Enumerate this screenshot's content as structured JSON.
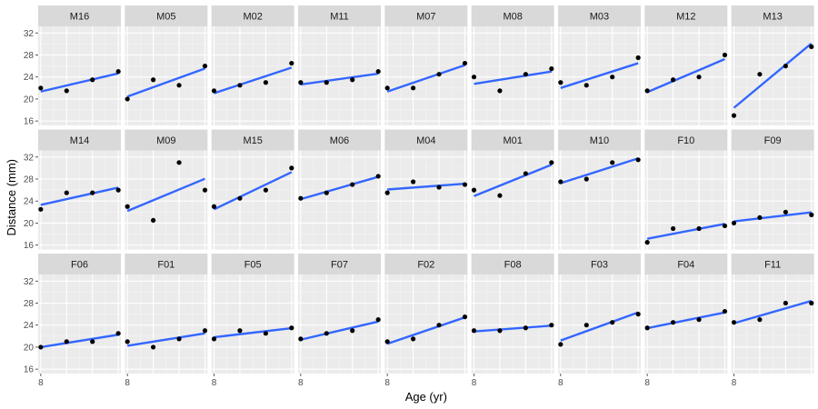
{
  "chart_data": {
    "type": "scatter",
    "xlabel": "Age (yr)",
    "ylabel": "Distance (mm)",
    "xlim": [
      7.8,
      14.2
    ],
    "ylim": [
      15.2,
      33.2
    ],
    "x_ticks": [
      8
    ],
    "x_tick_labels": [
      "8"
    ],
    "y_ticks": [
      16,
      20,
      24,
      28,
      32
    ],
    "grid": true,
    "point_color": "#000000",
    "line_color": "#3366FF",
    "panel_bg": "#EBEBEB",
    "strip_bg": "#D9D9D9",
    "ages": [
      8,
      10,
      12,
      14
    ],
    "panels": [
      {
        "subject": "M16",
        "y": [
          22,
          21.5,
          23.5,
          25
        ]
      },
      {
        "subject": "M05",
        "y": [
          20,
          23.5,
          22.5,
          26
        ]
      },
      {
        "subject": "M02",
        "y": [
          21.5,
          22.5,
          23,
          26.5
        ]
      },
      {
        "subject": "M11",
        "y": [
          23,
          23,
          23.5,
          25
        ]
      },
      {
        "subject": "M07",
        "y": [
          22,
          22,
          24.5,
          26.5
        ]
      },
      {
        "subject": "M08",
        "y": [
          24,
          21.5,
          24.5,
          25.5
        ]
      },
      {
        "subject": "M03",
        "y": [
          23,
          22.5,
          24,
          27.5
        ]
      },
      {
        "subject": "M12",
        "y": [
          21.5,
          23.5,
          24,
          28
        ]
      },
      {
        "subject": "M13",
        "y": [
          17,
          24.5,
          26,
          29.5
        ]
      },
      {
        "subject": "M14",
        "y": [
          22.5,
          25.5,
          25.5,
          26
        ]
      },
      {
        "subject": "M09",
        "y": [
          23,
          20.5,
          31,
          26
        ]
      },
      {
        "subject": "M15",
        "y": [
          23,
          24.5,
          26,
          30
        ]
      },
      {
        "subject": "M06",
        "y": [
          24.5,
          25.5,
          27,
          28.5
        ]
      },
      {
        "subject": "M04",
        "y": [
          25.5,
          27.5,
          26.5,
          27
        ]
      },
      {
        "subject": "M01",
        "y": [
          26,
          25,
          29,
          31
        ]
      },
      {
        "subject": "M10",
        "y": [
          27.5,
          28,
          31,
          31.5
        ]
      },
      {
        "subject": "F10",
        "y": [
          16.5,
          19,
          19,
          19.5
        ]
      },
      {
        "subject": "F09",
        "y": [
          20,
          21,
          22,
          21.5
        ]
      },
      {
        "subject": "F06",
        "y": [
          20,
          21,
          21,
          22.5
        ]
      },
      {
        "subject": "F01",
        "y": [
          21,
          20,
          21.5,
          23
        ]
      },
      {
        "subject": "F05",
        "y": [
          21.5,
          23,
          22.5,
          23.5
        ]
      },
      {
        "subject": "F07",
        "y": [
          21.5,
          22.5,
          23,
          25
        ]
      },
      {
        "subject": "F02",
        "y": [
          21,
          21.5,
          24,
          25.5
        ]
      },
      {
        "subject": "F08",
        "y": [
          23,
          23,
          23.5,
          24
        ]
      },
      {
        "subject": "F03",
        "y": [
          20.5,
          24,
          24.5,
          26
        ]
      },
      {
        "subject": "F04",
        "y": [
          23.5,
          24.5,
          25,
          26.5
        ]
      },
      {
        "subject": "F11",
        "y": [
          24.5,
          25,
          28,
          28
        ]
      }
    ]
  }
}
